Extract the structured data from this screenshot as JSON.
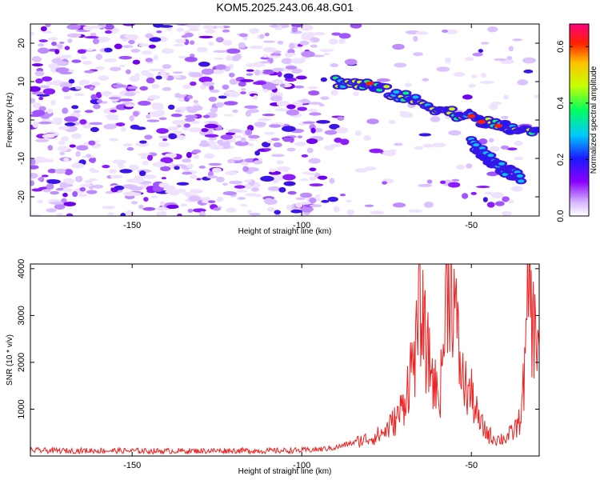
{
  "title": "KOM5.2025.243.06.48.G01",
  "chart_data": [
    {
      "type": "heatmap",
      "name": "spectrogram",
      "xlabel": "Height of straight line (km)",
      "ylabel": "Frequency (Hz)",
      "xlim": [
        -180,
        -30
      ],
      "ylim": [
        -25,
        25
      ],
      "xticks": [
        -150,
        -100,
        -50
      ],
      "xtick_labels": [
        "-150",
        "-100",
        "-50"
      ],
      "yticks": [
        -20,
        -10,
        0,
        10,
        20
      ],
      "ytick_labels": [
        "-20",
        "-10",
        "0",
        "10",
        "20"
      ],
      "colorbar": {
        "label": "Normalized spectral amplitude",
        "range": [
          0.0,
          0.68
        ],
        "ticks": [
          0.0,
          0.2,
          0.4,
          0.6
        ],
        "tick_labels": [
          "0.0",
          "0.2",
          "0.4",
          "0.6"
        ]
      },
      "features": [
        {
          "name": "meteor head echo trail",
          "x": [
            -90,
            -80,
            -70,
            -60,
            -50,
            -40,
            -30
          ],
          "y": [
            10,
            9,
            6,
            3,
            0.5,
            -2,
            -3
          ]
        },
        {
          "name": "secondary branch",
          "x": [
            -50,
            -45,
            -40,
            -35
          ],
          "y": [
            -6,
            -10,
            -13,
            -15
          ]
        }
      ]
    },
    {
      "type": "line",
      "name": "snr",
      "xlabel": "Height of straight line (km)",
      "ylabel": "SNR (10 * v/v)",
      "xlim": [
        -180,
        -30
      ],
      "ylim": [
        0,
        4100
      ],
      "xticks": [
        -150,
        -100,
        -50
      ],
      "xtick_labels": [
        "-150",
        "-100",
        "-50"
      ],
      "yticks": [
        1000,
        2000,
        3000,
        4000
      ],
      "ytick_labels": [
        "1000",
        "2000",
        "3000",
        "4000"
      ],
      "series": [
        {
          "name": "SNR",
          "color": "#ee2222",
          "x": [
            -180,
            -170,
            -160,
            -150,
            -140,
            -130,
            -120,
            -110,
            -100,
            -95,
            -90,
            -85,
            -80,
            -77,
            -75,
            -72,
            -70,
            -68,
            -66,
            -65,
            -64,
            -63,
            -62,
            -61,
            -60,
            -59,
            -58,
            -57,
            -56,
            -55,
            -54,
            -53,
            -52,
            -51,
            -50,
            -49,
            -48,
            -46,
            -44,
            -42,
            -40,
            -38,
            -36,
            -35,
            -34,
            -33,
            -32,
            -31,
            -30
          ],
          "y": [
            120,
            110,
            115,
            110,
            105,
            110,
            115,
            110,
            120,
            140,
            180,
            280,
            380,
            450,
            560,
            800,
            1100,
            1800,
            2400,
            3300,
            2600,
            2200,
            1900,
            1600,
            1300,
            1500,
            2700,
            3800,
            3950,
            3300,
            2400,
            1800,
            1500,
            1400,
            1300,
            1100,
            750,
            550,
            400,
            360,
            380,
            480,
            700,
            1200,
            2000,
            4050,
            2800,
            2500,
            2700
          ]
        }
      ]
    }
  ]
}
